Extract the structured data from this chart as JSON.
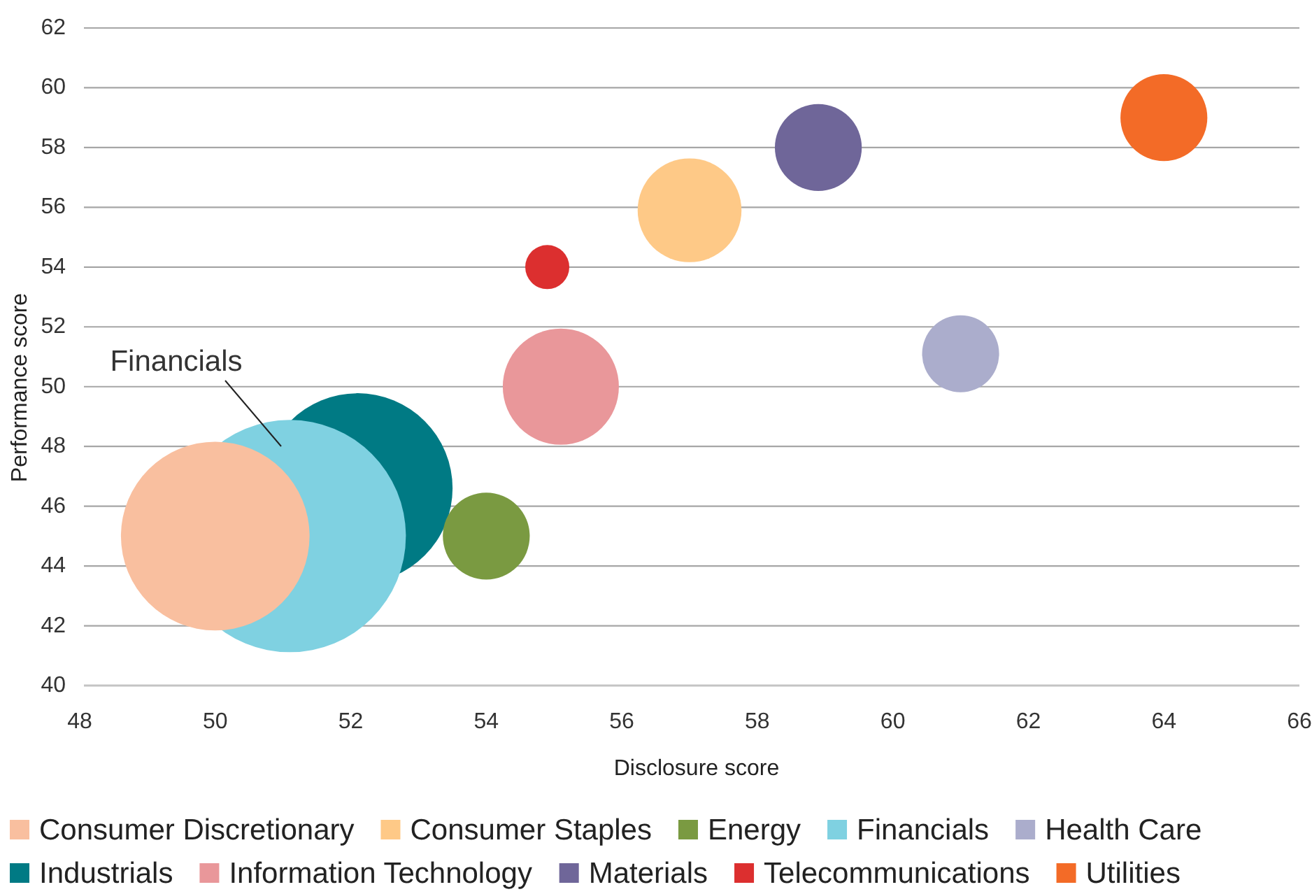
{
  "chart_data": {
    "type": "bubble",
    "xlabel": "Disclosure score",
    "ylabel": "Performance score",
    "xlim": [
      48,
      66
    ],
    "ylim": [
      40,
      62
    ],
    "xticks": [
      48,
      50,
      52,
      54,
      56,
      58,
      60,
      62,
      64,
      66
    ],
    "yticks": [
      40,
      42,
      44,
      46,
      48,
      50,
      52,
      54,
      56,
      58,
      60,
      62
    ],
    "grid": "y",
    "legend": "bottom",
    "annotations": [
      "Financials"
    ],
    "series": [
      {
        "name": "Consumer Discretionary",
        "color": "#f9bf9f",
        "x": [
          50.0
        ],
        "values": [
          45.0
        ],
        "sizes": [
          0.66
        ]
      },
      {
        "name": "Consumer Staples",
        "color": "#fec987",
        "x": [
          57.0
        ],
        "values": [
          55.9
        ],
        "sizes": [
          0.2
        ]
      },
      {
        "name": "Energy",
        "color": "#7a9a41",
        "x": [
          54.0
        ],
        "values": [
          45.0
        ],
        "sizes": [
          0.14
        ]
      },
      {
        "name": "Financials",
        "color": "#7fd1e1",
        "x": [
          51.1
        ],
        "values": [
          45.0
        ],
        "sizes": [
          1
        ]
      },
      {
        "name": "Health Care",
        "color": "#abadcc",
        "x": [
          61.0
        ],
        "values": [
          51.1
        ],
        "sizes": [
          0.11
        ]
      },
      {
        "name": "Industrials",
        "color": "#007a84",
        "x": [
          52.1
        ],
        "values": [
          46.6
        ],
        "sizes": [
          0.67
        ]
      },
      {
        "name": "Information Technology",
        "color": "#e9979a",
        "x": [
          55.1
        ],
        "values": [
          50.0
        ],
        "sizes": [
          0.25
        ]
      },
      {
        "name": "Materials",
        "color": "#6f6699",
        "x": [
          58.9
        ],
        "values": [
          58.0
        ],
        "sizes": [
          0.14
        ]
      },
      {
        "name": "Telecommunications",
        "color": "#dc2f2f",
        "x": [
          54.9
        ],
        "values": [
          54.0
        ],
        "sizes": [
          0.036
        ]
      },
      {
        "name": "Utilities",
        "color": "#f36b27",
        "x": [
          64.0
        ],
        "values": [
          59.0
        ],
        "sizes": [
          0.14
        ]
      }
    ]
  }
}
